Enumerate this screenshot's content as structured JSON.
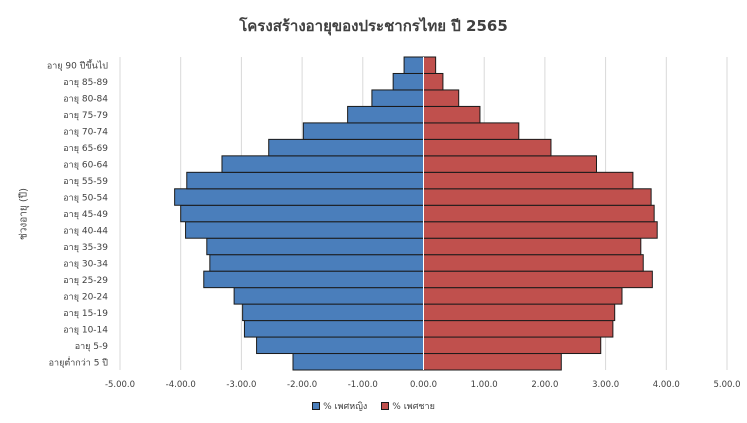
{
  "chart_data": {
    "type": "bar",
    "orientation": "horizontal",
    "title": "โครงสร้างอายุของประชากรไทย ปี 2565",
    "ylabel": "ช่วงอายุ (ปี)",
    "xlabel": "",
    "categories": [
      "อายุต่ำกว่า 5 ปี",
      "อายุ 5-9",
      "อายุ 10-14",
      "อายุ 15-19",
      "อายุ 20-24",
      "อายุ 25-29",
      "อายุ 30-34",
      "อายุ 35-39",
      "อายุ 40-44",
      "อายุ 45-49",
      "อายุ 50-54",
      "อายุ 55-59",
      "อายุ 60-64",
      "อายุ 65-69",
      "อายุ 70-74",
      "อายุ 75-79",
      "อายุ 80-84",
      "อายุ 85-89",
      "อายุ 90 ปีขึ้นไป"
    ],
    "series": [
      {
        "name": "% เพศหญิง",
        "color": "#4a7ebb",
        "values": [
          -2.15,
          -2.75,
          -2.95,
          -2.98,
          -3.12,
          -3.62,
          -3.52,
          -3.57,
          -3.92,
          -4.0,
          -4.1,
          -3.9,
          -3.32,
          -2.55,
          -1.98,
          -1.25,
          -0.85,
          -0.5,
          -0.32
        ]
      },
      {
        "name": "% เพศชาย",
        "color": "#c0504d",
        "values": [
          2.27,
          2.92,
          3.12,
          3.15,
          3.27,
          3.77,
          3.62,
          3.58,
          3.85,
          3.8,
          3.75,
          3.45,
          2.85,
          2.1,
          1.57,
          0.93,
          0.58,
          0.32,
          0.2
        ]
      }
    ],
    "tick_labels": [
      "-5.00.0",
      "-4.00.0",
      "-3.00.0",
      "-2.00.0",
      "-1.00.0",
      "0.00.0",
      "1.00.0",
      "2.00.0",
      "3.00.0",
      "4.00.0",
      "5.00.0"
    ],
    "xlim": [
      -5,
      5
    ],
    "grid": true,
    "legend_position": "bottom"
  }
}
